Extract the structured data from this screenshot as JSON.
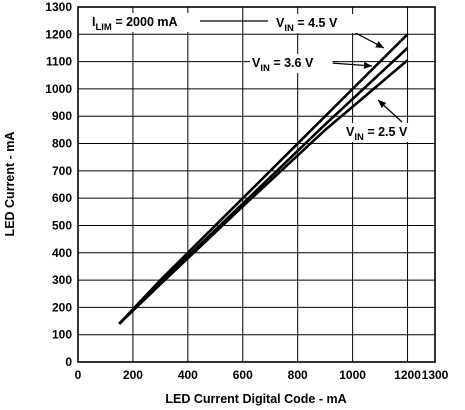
{
  "chart_data": {
    "type": "line",
    "xlabel": "LED Current Digital Code - mA",
    "ylabel": "LED Current - mA",
    "xlim": [
      0,
      1300
    ],
    "ylim": [
      0,
      1300
    ],
    "xticks": [
      0,
      200,
      400,
      600,
      800,
      1000,
      1200,
      1300
    ],
    "yticks": [
      0,
      100,
      200,
      300,
      400,
      500,
      600,
      700,
      800,
      900,
      1000,
      1100,
      1200,
      1300
    ],
    "grid": true,
    "annotations": [
      {
        "id": "ilim",
        "main": "I",
        "sub": "LIM",
        "rest": " = 2000 mA"
      },
      {
        "id": "vin45",
        "main": "V",
        "sub": "IN",
        "rest": " = 4.5 V"
      },
      {
        "id": "vin36",
        "main": "V",
        "sub": "IN",
        "rest": " = 3.6 V"
      },
      {
        "id": "vin25",
        "main": "V",
        "sub": "IN",
        "rest": " = 2.5 V"
      }
    ],
    "series": [
      {
        "name": "V_IN = 4.5 V",
        "x": [
          150,
          300,
          600,
          900,
          1200
        ],
        "y": [
          140,
          300,
          600,
          900,
          1200
        ]
      },
      {
        "name": "V_IN = 3.6 V",
        "x": [
          150,
          300,
          600,
          900,
          1200
        ],
        "y": [
          140,
          290,
          580,
          870,
          1150
        ]
      },
      {
        "name": "V_IN = 2.5 V",
        "x": [
          150,
          300,
          600,
          900,
          1200
        ],
        "y": [
          140,
          285,
          570,
          850,
          1105
        ]
      }
    ]
  }
}
